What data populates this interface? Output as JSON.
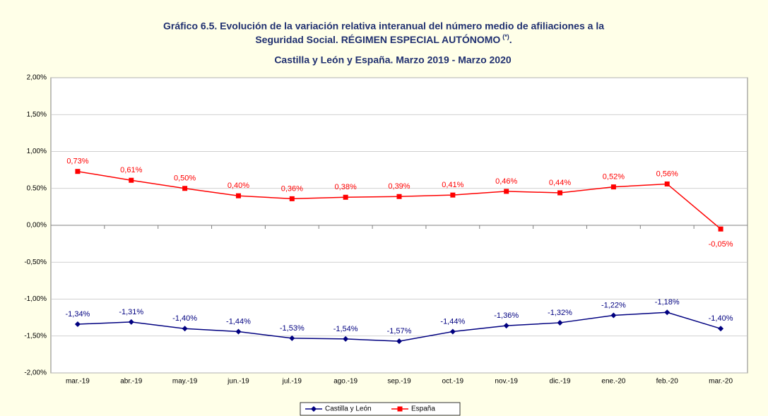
{
  "chart_data": {
    "type": "line",
    "title": [
      "Gráfico 6.5. Evolución de la variación relativa interanual del número medio de  afiliaciones a la",
      "Seguridad Social. RÉGIMEN ESPECIAL AUTÓNOMO"
    ],
    "title_note": "(*)",
    "title_end": ".",
    "subtitle": "Castilla y León y España. Marzo 2019 - Marzo 2020",
    "categories": [
      "mar.-19",
      "abr.-19",
      "may.-19",
      "jun.-19",
      "jul.-19",
      "ago.-19",
      "sep.-19",
      "oct.-19",
      "nov.-19",
      "dic.-19",
      "ene.-20",
      "feb.-20",
      "mar.-20"
    ],
    "series": [
      {
        "name": "Castilla y León",
        "color": "#000080",
        "values": [
          -1.34,
          -1.31,
          -1.4,
          -1.44,
          -1.53,
          -1.54,
          -1.57,
          -1.44,
          -1.36,
          -1.32,
          -1.22,
          -1.18,
          -1.4
        ],
        "value_labels": [
          "-1,34%",
          "-1,31%",
          "-1,40%",
          "-1,44%",
          "-1,53%",
          "-1,54%",
          "-1,57%",
          "-1,44%",
          "-1,36%",
          "-1,32%",
          "-1,22%",
          "-1,18%",
          "-1,40%"
        ]
      },
      {
        "name": "España",
        "color": "#ff0000",
        "values": [
          0.73,
          0.61,
          0.5,
          0.4,
          0.36,
          0.38,
          0.39,
          0.41,
          0.46,
          0.44,
          0.52,
          0.56,
          -0.05
        ],
        "value_labels": [
          "0,73%",
          "0,61%",
          "0,50%",
          "0,40%",
          "0,36%",
          "0,38%",
          "0,39%",
          "0,41%",
          "0,46%",
          "0,44%",
          "0,52%",
          "0,56%",
          "-0,05%"
        ]
      }
    ],
    "ylim": [
      -2,
      2
    ],
    "yticks": [
      {
        "value": -2,
        "label": "-2,00%"
      },
      {
        "value": -1.5,
        "label": "-1,50%"
      },
      {
        "value": -1,
        "label": "-1,00%"
      },
      {
        "value": -0.5,
        "label": "-0,50%"
      },
      {
        "value": 0,
        "label": "0,00%"
      },
      {
        "value": 0.5,
        "label": "0.50%"
      },
      {
        "value": 1,
        "label": "1,00%"
      },
      {
        "value": 1.5,
        "label": "1,50%"
      },
      {
        "value": 2,
        "label": "2,00%"
      }
    ],
    "grid": true,
    "legend": "bottom"
  }
}
